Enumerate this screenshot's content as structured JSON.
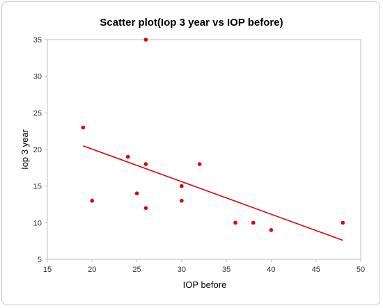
{
  "chart_data": {
    "type": "scatter",
    "title": "Scatter plot(Iop 3 year vs IOP before)",
    "xlabel": "IOP before",
    "ylabel": "Iop 3 year",
    "xlim": [
      15,
      50
    ],
    "ylim": [
      5,
      35
    ],
    "xticks": [
      15,
      20,
      25,
      30,
      35,
      40,
      45,
      50
    ],
    "yticks": [
      5,
      10,
      15,
      20,
      25,
      30,
      35
    ],
    "grid": false,
    "legend": "none",
    "point_color": "#e00000",
    "line_color": "#e00000",
    "series": [
      {
        "points": [
          {
            "x": 19,
            "y": 23
          },
          {
            "x": 20,
            "y": 13
          },
          {
            "x": 24,
            "y": 19
          },
          {
            "x": 25,
            "y": 14
          },
          {
            "x": 26,
            "y": 35
          },
          {
            "x": 26,
            "y": 18
          },
          {
            "x": 26,
            "y": 12
          },
          {
            "x": 30,
            "y": 15
          },
          {
            "x": 30,
            "y": 13
          },
          {
            "x": 32,
            "y": 18
          },
          {
            "x": 36,
            "y": 10
          },
          {
            "x": 38,
            "y": 10
          },
          {
            "x": 40,
            "y": 9
          },
          {
            "x": 48,
            "y": 10
          }
        ]
      }
    ],
    "trendline": {
      "x": [
        19,
        48
      ],
      "y": [
        20.5,
        7.6
      ]
    }
  }
}
